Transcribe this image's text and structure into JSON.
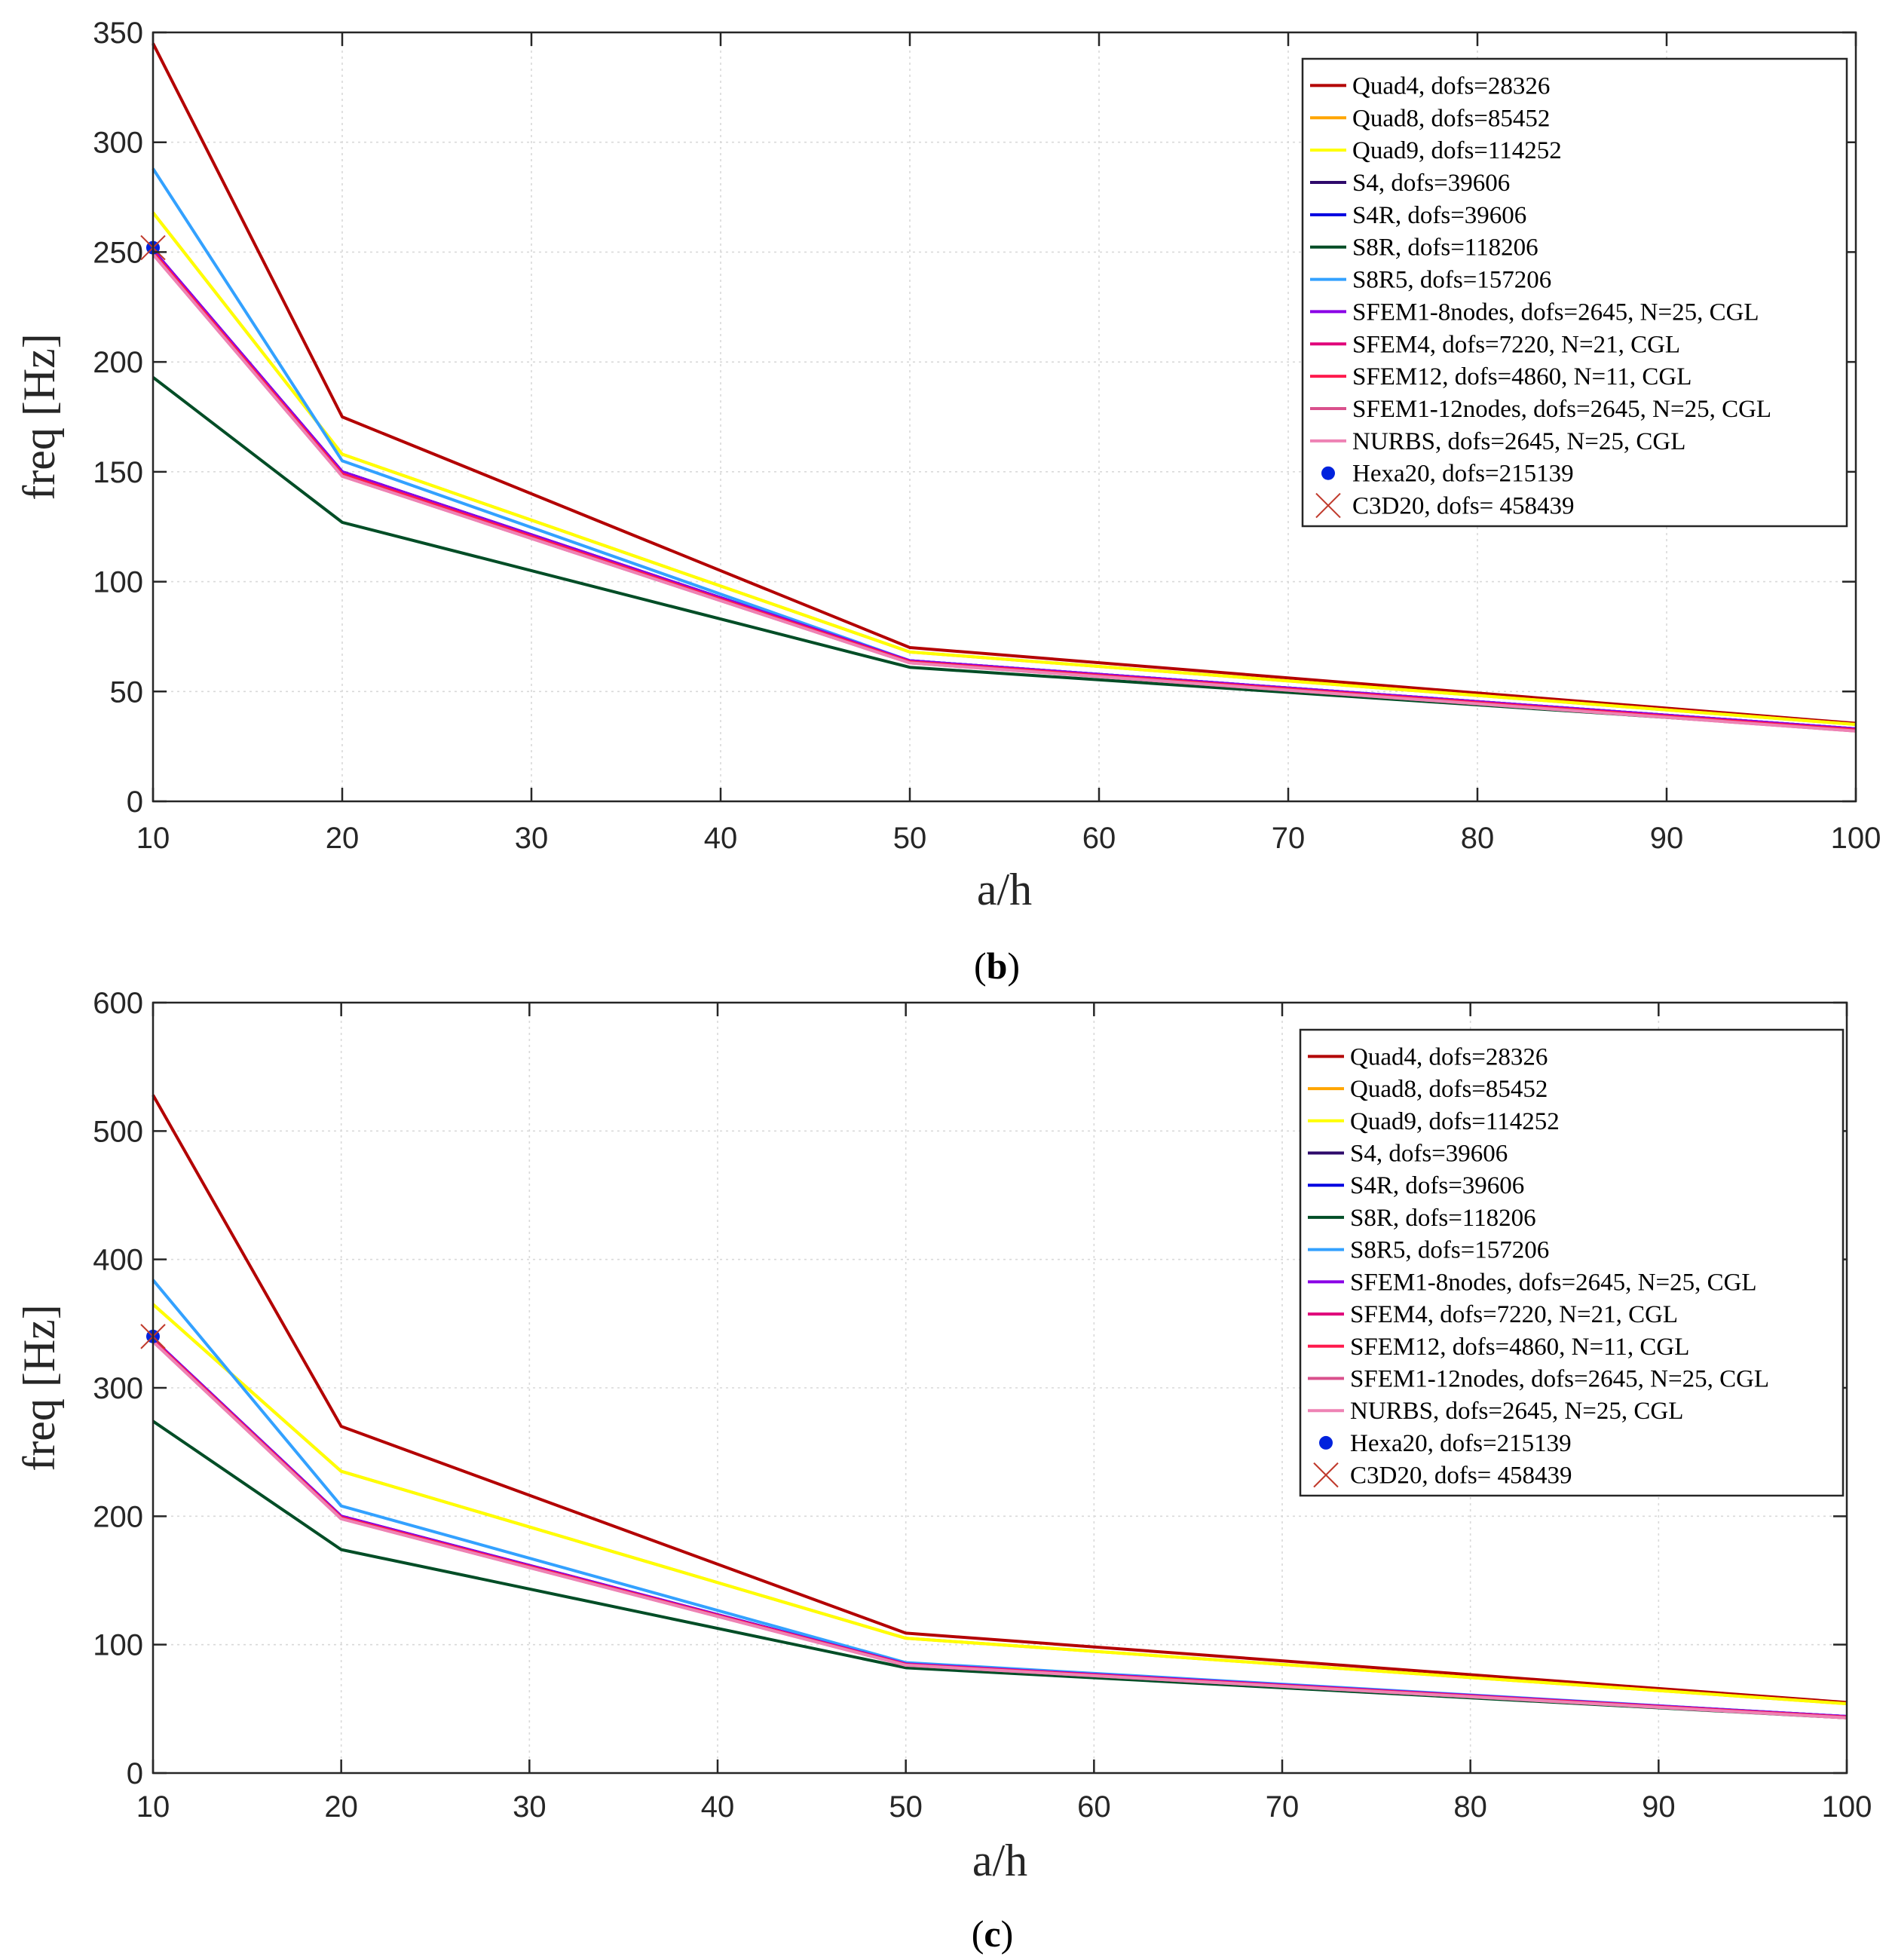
{
  "colors": {
    "Quad4": "#b30000",
    "Quad8": "#ffa500",
    "Quad9": "#ffff00",
    "S4": "#2e0a6b",
    "S4R": "#0000e0",
    "S8R": "#004d26",
    "S8R5": "#33a1ff",
    "SFEM1_8nodes": "#8a00e6",
    "SFEM4": "#e0007a",
    "SFEM12": "#ff1a4d",
    "SFEM1_12nodes": "#d9508c",
    "NURBS": "#ee82b4",
    "Hexa20": "#0022dd",
    "C3D20": "#c0392b",
    "axis": "#262626",
    "grid": "#d9d9d9"
  },
  "chart_data": [
    {
      "id": "b",
      "type": "line",
      "caption": {
        "open": "(",
        "letter": "b",
        "close": ")"
      },
      "xlabel": "a/h",
      "ylabel": "freq [Hz]",
      "xlim": [
        10,
        100
      ],
      "ylim": [
        0,
        350
      ],
      "xticks": [
        10,
        20,
        30,
        40,
        50,
        60,
        70,
        80,
        90,
        100
      ],
      "yticks": [
        0,
        50,
        100,
        150,
        200,
        250,
        300,
        350
      ],
      "grid": true,
      "legend_position": "top-right",
      "x": [
        10,
        20,
        50,
        100
      ],
      "series": [
        {
          "name": "Quad4, dofs=28326",
          "color_key": "Quad4",
          "kind": "line",
          "values": [
            345,
            175,
            70,
            35.5
          ]
        },
        {
          "name": "Quad8, dofs=85452",
          "color_key": "Quad8",
          "kind": "line",
          "values": [
            268,
            158,
            68,
            35
          ]
        },
        {
          "name": "Quad9, dofs=114252",
          "color_key": "Quad9",
          "kind": "line",
          "values": [
            268,
            158,
            68,
            35
          ]
        },
        {
          "name": "S4, dofs=39606",
          "color_key": "S4",
          "kind": "line",
          "values": [
            251,
            150,
            64,
            33
          ]
        },
        {
          "name": "S4R, dofs=39606",
          "color_key": "S4R",
          "kind": "line",
          "values": [
            251,
            150,
            64,
            33
          ]
        },
        {
          "name": "S8R, dofs=118206",
          "color_key": "S8R",
          "kind": "line",
          "values": [
            193,
            127,
            61,
            32.5
          ]
        },
        {
          "name": "S8R5, dofs=157206",
          "color_key": "S8R5",
          "kind": "line",
          "values": [
            288,
            155,
            64,
            33
          ]
        },
        {
          "name": "SFEM1-8nodes, dofs=2645, N=25, CGL",
          "color_key": "SFEM1_8nodes",
          "kind": "line",
          "values": [
            251,
            150,
            64,
            33
          ]
        },
        {
          "name": "SFEM4, dofs=7220, N=21, CGL",
          "color_key": "SFEM4",
          "kind": "line",
          "values": [
            250,
            149,
            63.5,
            32.5
          ]
        },
        {
          "name": "SFEM12, dofs=4860, N=11, CGL",
          "color_key": "SFEM12",
          "kind": "line",
          "values": [
            250,
            149,
            63.5,
            32.5
          ]
        },
        {
          "name": "SFEM1-12nodes, dofs=2645, N=25, CGL",
          "color_key": "SFEM1_12nodes",
          "kind": "line",
          "values": [
            249,
            148,
            63,
            32
          ]
        },
        {
          "name": "NURBS, dofs=2645, N=25, CGL",
          "color_key": "NURBS",
          "kind": "line",
          "values": [
            249,
            148,
            63,
            32
          ]
        },
        {
          "name": "Hexa20, dofs=215139",
          "color_key": "Hexa20",
          "kind": "dot",
          "values": [
            252,
            null,
            null,
            null
          ]
        },
        {
          "name": "C3D20, dofs= 458439",
          "color_key": "C3D20",
          "kind": "cross",
          "values": [
            252,
            null,
            null,
            null
          ]
        }
      ]
    },
    {
      "id": "c",
      "type": "line",
      "caption": {
        "open": "(",
        "letter": "c",
        "close": ")"
      },
      "xlabel": "a/h",
      "ylabel": "freq [Hz]",
      "xlim": [
        10,
        100
      ],
      "ylim": [
        0,
        600
      ],
      "xticks": [
        10,
        20,
        30,
        40,
        50,
        60,
        70,
        80,
        90,
        100
      ],
      "yticks": [
        0,
        100,
        200,
        300,
        400,
        500,
        600
      ],
      "grid": true,
      "legend_position": "top-right",
      "x": [
        10,
        20,
        50,
        100
      ],
      "series": [
        {
          "name": "Quad4, dofs=28326",
          "color_key": "Quad4",
          "kind": "line",
          "values": [
            528,
            270,
            109,
            55
          ]
        },
        {
          "name": "Quad8, dofs=85452",
          "color_key": "Quad8",
          "kind": "line",
          "values": [
            365,
            235,
            105,
            54
          ]
        },
        {
          "name": "Quad9, dofs=114252",
          "color_key": "Quad9",
          "kind": "line",
          "values": [
            365,
            235,
            105,
            54
          ]
        },
        {
          "name": "S4, dofs=39606",
          "color_key": "S4",
          "kind": "line",
          "values": [
            338,
            200,
            85,
            44
          ]
        },
        {
          "name": "S4R, dofs=39606",
          "color_key": "S4R",
          "kind": "line",
          "values": [
            338,
            200,
            85,
            44
          ]
        },
        {
          "name": "S8R, dofs=118206",
          "color_key": "S8R",
          "kind": "line",
          "values": [
            274,
            174,
            82,
            43
          ]
        },
        {
          "name": "S8R5, dofs=157206",
          "color_key": "S8R5",
          "kind": "line",
          "values": [
            384,
            208,
            86,
            44
          ]
        },
        {
          "name": "SFEM1-8nodes, dofs=2645, N=25, CGL",
          "color_key": "SFEM1_8nodes",
          "kind": "line",
          "values": [
            338,
            200,
            85,
            44
          ]
        },
        {
          "name": "SFEM4, dofs=7220, N=21, CGL",
          "color_key": "SFEM4",
          "kind": "line",
          "values": [
            337,
            199,
            84.5,
            43.5
          ]
        },
        {
          "name": "SFEM12, dofs=4860, N=11, CGL",
          "color_key": "SFEM12",
          "kind": "line",
          "values": [
            337,
            199,
            84.5,
            43.5
          ]
        },
        {
          "name": "SFEM1-12nodes, dofs=2645, N=25, CGL",
          "color_key": "SFEM1_12nodes",
          "kind": "line",
          "values": [
            336,
            198,
            84,
            43
          ]
        },
        {
          "name": "NURBS, dofs=2645, N=25, CGL",
          "color_key": "NURBS",
          "kind": "line",
          "values": [
            336,
            198,
            84,
            43
          ]
        },
        {
          "name": "Hexa20, dofs=215139",
          "color_key": "Hexa20",
          "kind": "dot",
          "values": [
            340,
            null,
            null,
            null
          ]
        },
        {
          "name": "C3D20, dofs= 458439",
          "color_key": "C3D20",
          "kind": "cross",
          "values": [
            340,
            null,
            null,
            null
          ]
        }
      ]
    }
  ]
}
